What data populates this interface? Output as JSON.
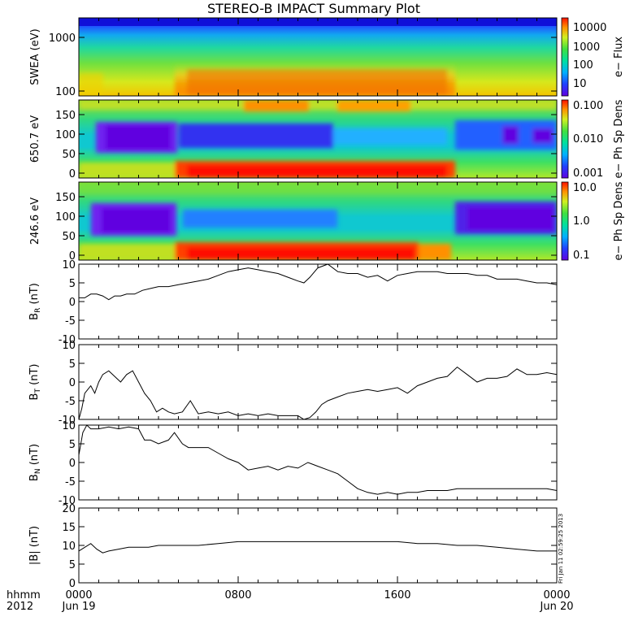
{
  "title": "STEREO-B IMPACT Summary Plot",
  "timestamp_note": "Fri Jan 11 02:59:25 2013",
  "x_axis": {
    "corner_top": "hhmm",
    "corner_bottom": "2012",
    "ticks": [
      {
        "hours": 0,
        "label": "0000",
        "sub": "Jun 19"
      },
      {
        "hours": 8,
        "label": "0800",
        "sub": ""
      },
      {
        "hours": 16,
        "label": "1600",
        "sub": ""
      },
      {
        "hours": 24,
        "label": "0000",
        "sub": "Jun 20"
      }
    ]
  },
  "spectrograms": [
    {
      "ylabel": "SWEA (eV)",
      "scale": "log",
      "yticks": [
        "100",
        "1000"
      ],
      "cbar_label": "e− Flux",
      "cbar_ticks": [
        "10",
        "100",
        "1000",
        "10000"
      ]
    },
    {
      "ylabel": "650.7 eV",
      "scale": "linear",
      "yticks": [
        "0",
        "50",
        "100",
        "150"
      ],
      "cbar_label": "e− Ph Sp Dens",
      "cbar_ticks": [
        "0.001",
        "0.010",
        "0.100"
      ]
    },
    {
      "ylabel": "246.6 eV",
      "scale": "linear",
      "yticks": [
        "0",
        "50",
        "100",
        "150"
      ],
      "cbar_label": "e− Ph Sp Dens",
      "cbar_ticks": [
        "0.1",
        "1.0",
        "10.0"
      ]
    }
  ],
  "chart_data": [
    {
      "type": "line",
      "name": "B_R (nT)",
      "ylim": [
        -10,
        10
      ],
      "yticks": [
        -10,
        -5,
        0,
        5,
        10
      ],
      "x_hours": [
        0,
        0.3,
        0.6,
        0.9,
        1.2,
        1.5,
        1.8,
        2.1,
        2.4,
        2.8,
        3.2,
        3.6,
        4,
        4.5,
        5,
        5.5,
        6,
        6.5,
        7,
        7.5,
        8,
        8.5,
        9,
        9.5,
        10,
        10.5,
        11,
        11.3,
        11.6,
        12,
        12.5,
        13,
        13.5,
        14,
        14.5,
        15,
        15.5,
        16,
        16.5,
        17,
        17.5,
        18,
        18.5,
        19,
        19.5,
        20,
        20.5,
        21,
        21.5,
        22,
        22.5,
        23,
        23.5,
        24
      ],
      "values": [
        1,
        1,
        2,
        2,
        1.5,
        0.5,
        1.5,
        1.5,
        2,
        2,
        3,
        3.5,
        4,
        4,
        4.5,
        5,
        5.5,
        6,
        7,
        8,
        8.5,
        9,
        8.5,
        8,
        7.5,
        6.5,
        5.5,
        5,
        6.5,
        9,
        10,
        8,
        7.5,
        7.5,
        6.5,
        7,
        5.5,
        7,
        7.5,
        8,
        8,
        8,
        7.5,
        7.5,
        7.5,
        7,
        7,
        6,
        6,
        6,
        5.5,
        5,
        5,
        4.5
      ]
    },
    {
      "type": "line",
      "name": "B_T (nT)",
      "ylim": [
        -10,
        10
      ],
      "yticks": [
        -10,
        -5,
        0,
        5,
        10
      ],
      "x_hours": [
        0,
        0.15,
        0.3,
        0.45,
        0.6,
        0.8,
        1,
        1.2,
        1.5,
        1.8,
        2.1,
        2.4,
        2.7,
        3,
        3.3,
        3.6,
        3.9,
        4.2,
        4.5,
        4.8,
        5.2,
        5.6,
        6,
        6.5,
        7,
        7.5,
        8,
        8.5,
        9,
        9.5,
        10,
        10.5,
        11,
        11.3,
        11.6,
        11.9,
        12.2,
        12.5,
        13,
        13.5,
        14,
        14.5,
        15,
        15.5,
        16,
        16.5,
        17,
        17.5,
        18,
        18.5,
        19,
        19.5,
        20,
        20.5,
        21,
        21.5,
        22,
        22.5,
        23,
        23.5,
        24
      ],
      "values": [
        -10,
        -7,
        -3,
        -2,
        -1,
        -3,
        0,
        2,
        3,
        1.5,
        0,
        2,
        3,
        0,
        -3,
        -5,
        -8,
        -7,
        -8,
        -8.5,
        -8,
        -5,
        -8.5,
        -8,
        -8.5,
        -8,
        -9,
        -8.5,
        -9,
        -8.5,
        -9,
        -9,
        -9,
        -10,
        -9.5,
        -8,
        -6,
        -5,
        -4,
        -3,
        -2.5,
        -2,
        -2.5,
        -2,
        -1.5,
        -3,
        -1,
        0,
        1,
        1.5,
        4,
        2,
        0,
        1,
        1,
        1.5,
        3.5,
        2,
        2,
        2.5,
        2
      ]
    },
    {
      "type": "line",
      "name": "B_N (nT)",
      "ylim": [
        -10,
        10
      ],
      "yticks": [
        -10,
        -5,
        0,
        5,
        10
      ],
      "x_hours": [
        0,
        0.2,
        0.4,
        0.6,
        0.8,
        1,
        1.5,
        2,
        2.5,
        3,
        3.3,
        3.6,
        4,
        4.5,
        4.8,
        5.2,
        5.5,
        6,
        6.5,
        7,
        7.5,
        8,
        8.5,
        9,
        9.5,
        10,
        10.5,
        11,
        11.5,
        12,
        12.5,
        13,
        13.5,
        14,
        14.5,
        15,
        15.5,
        16,
        16.5,
        17,
        17.5,
        18,
        18.5,
        19,
        19.5,
        20,
        20.5,
        21,
        21.5,
        22,
        22.5,
        23,
        23.5,
        24
      ],
      "values": [
        2,
        8,
        10,
        9,
        9,
        9,
        9.5,
        9,
        9.5,
        9,
        6,
        6,
        5,
        6,
        8,
        5,
        4,
        4,
        4,
        2.5,
        1,
        0,
        -2,
        -1.5,
        -1,
        -2,
        -1,
        -1.5,
        0,
        -1,
        -2,
        -3,
        -5,
        -7,
        -8,
        -8.5,
        -8,
        -8.5,
        -8,
        -8,
        -7.5,
        -7.5,
        -7.5,
        -7,
        -7,
        -7,
        -7,
        -7,
        -7,
        -7,
        -7,
        -7,
        -7,
        -7.5
      ]
    },
    {
      "type": "line",
      "name": "|B| (nT)",
      "ylim": [
        0,
        20
      ],
      "yticks": [
        0,
        5,
        10,
        15,
        20
      ],
      "x_hours": [
        0,
        0.3,
        0.6,
        0.9,
        1.2,
        1.5,
        2,
        2.5,
        3,
        3.5,
        4,
        4.5,
        5,
        5.5,
        6,
        7,
        8,
        9,
        10,
        11,
        12,
        13,
        14,
        15,
        16,
        17,
        18,
        19,
        20,
        21,
        22,
        23,
        24
      ],
      "values": [
        8.5,
        9.5,
        10.5,
        9,
        8,
        8.5,
        9,
        9.5,
        9.5,
        9.5,
        10,
        10,
        10,
        10,
        10,
        10.5,
        11,
        11,
        11,
        11,
        11,
        11,
        11,
        11,
        11,
        10.5,
        10.5,
        10,
        10,
        9.5,
        9,
        8.5,
        8.5
      ]
    }
  ]
}
